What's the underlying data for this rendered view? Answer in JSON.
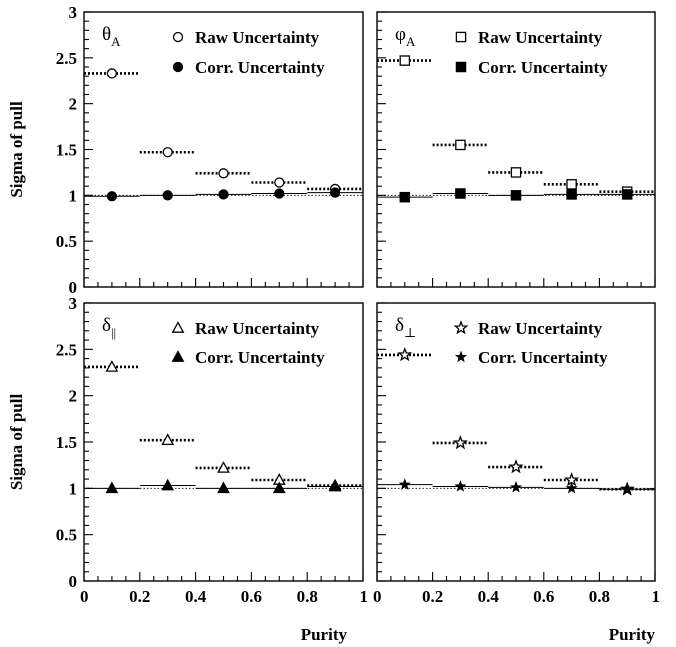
{
  "chart_data": [
    {
      "type": "scatter",
      "panel_label": {
        "base": "θ",
        "sub": "A"
      },
      "xlabel": "",
      "ylabel": "Sigma of pull",
      "xlim": [
        0,
        1
      ],
      "ylim": [
        0,
        3
      ],
      "xticks": [
        "",
        "",
        "",
        "",
        "",
        ""
      ],
      "yticks": [
        "0",
        "0.5",
        "1",
        "1.5",
        "2",
        "2.5",
        "3"
      ],
      "reference_line": 1,
      "bin_halfwidth": 0.1,
      "x": [
        0.1,
        0.3,
        0.5,
        0.7,
        0.9
      ],
      "series": [
        {
          "name": "Raw Uncertainty",
          "marker": "circle-open",
          "values": [
            2.33,
            1.47,
            1.24,
            1.14,
            1.07
          ]
        },
        {
          "name": "Corr. Uncertainty",
          "marker": "circle-filled",
          "values": [
            0.99,
            1.0,
            1.01,
            1.02,
            1.03
          ]
        }
      ]
    },
    {
      "type": "scatter",
      "panel_label": {
        "base": "φ",
        "sub": "A"
      },
      "xlabel": "",
      "ylabel": "",
      "xlim": [
        0,
        1
      ],
      "ylim": [
        0,
        3
      ],
      "xticks": [
        "",
        "",
        "",
        "",
        "",
        ""
      ],
      "yticks": [
        "",
        "",
        "",
        "",
        "",
        "",
        ""
      ],
      "reference_line": 1,
      "bin_halfwidth": 0.1,
      "x": [
        0.1,
        0.3,
        0.5,
        0.7,
        0.9
      ],
      "series": [
        {
          "name": "Raw Uncertainty",
          "marker": "square-open",
          "values": [
            2.47,
            1.55,
            1.25,
            1.12,
            1.04
          ]
        },
        {
          "name": "Corr. Uncertainty",
          "marker": "square-filled",
          "values": [
            0.98,
            1.02,
            1.0,
            1.01,
            1.01
          ]
        }
      ]
    },
    {
      "type": "scatter",
      "panel_label": {
        "base": "δ",
        "sub": "||"
      },
      "xlabel": "",
      "ylabel": "Sigma of pull",
      "xlim": [
        0,
        1
      ],
      "ylim": [
        0,
        3
      ],
      "xticks": [
        "0",
        "0.2",
        "0.4",
        "0.6",
        "0.8",
        "1"
      ],
      "yticks": [
        "0",
        "0.5",
        "1",
        "1.5",
        "2",
        "2.5",
        "3"
      ],
      "reference_line": 1,
      "bin_halfwidth": 0.1,
      "x": [
        0.1,
        0.3,
        0.5,
        0.7,
        0.9
      ],
      "series": [
        {
          "name": "Raw Uncertainty",
          "marker": "triangle-open",
          "values": [
            2.31,
            1.52,
            1.22,
            1.09,
            1.03
          ]
        },
        {
          "name": "Corr. Uncertainty",
          "marker": "triangle-filled",
          "values": [
            1.0,
            1.03,
            1.0,
            1.0,
            1.02
          ]
        }
      ]
    },
    {
      "type": "scatter",
      "panel_label": {
        "base": "δ",
        "sub": "⊥"
      },
      "xlabel": "Purity",
      "ylabel": "",
      "xlim": [
        0,
        1
      ],
      "ylim": [
        0,
        3
      ],
      "xticks": [
        "0",
        "0.2",
        "0.4",
        "0.6",
        "0.8",
        "1"
      ],
      "yticks": [
        "",
        "",
        "",
        "",
        "",
        "",
        ""
      ],
      "reference_line": 1,
      "bin_halfwidth": 0.1,
      "x": [
        0.1,
        0.3,
        0.5,
        0.7,
        0.9
      ],
      "series": [
        {
          "name": "Raw Uncertainty",
          "marker": "star-open",
          "values": [
            2.44,
            1.49,
            1.23,
            1.09,
            0.99
          ]
        },
        {
          "name": "Corr. Uncertainty",
          "marker": "star-filled",
          "values": [
            1.04,
            1.02,
            1.01,
            1.0,
            0.99
          ]
        }
      ]
    }
  ],
  "shared_xlabel_left": "Purity"
}
